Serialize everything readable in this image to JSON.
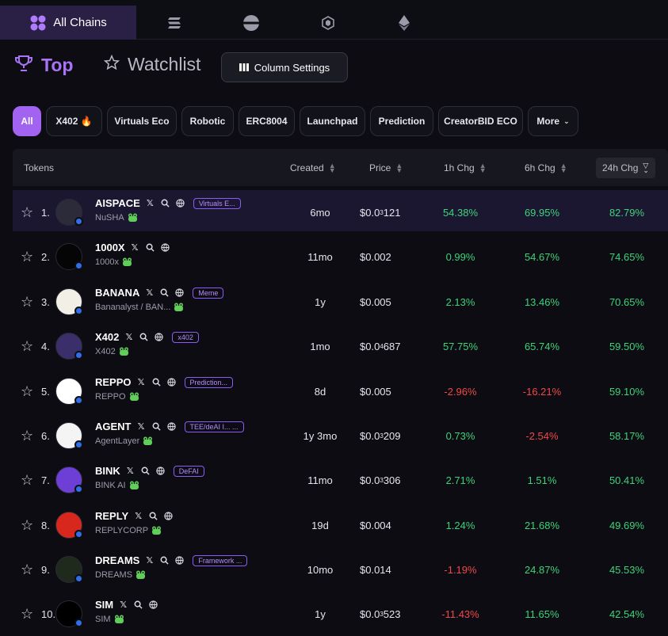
{
  "chains": {
    "active_label": "All Chains",
    "tabs": [
      {
        "name": "all-chains",
        "icon": "grid-icon"
      },
      {
        "name": "solana",
        "icon": "solana-icon"
      },
      {
        "name": "base",
        "icon": "base-icon"
      },
      {
        "name": "bnb",
        "icon": "bnb-icon"
      },
      {
        "name": "ethereum",
        "icon": "ethereum-icon"
      }
    ]
  },
  "header": {
    "top_label": "Top",
    "watchlist_label": "Watchlist",
    "column_settings_label": "Column Settings"
  },
  "filters": [
    "All",
    "X402 🔥",
    "Virtuals Eco",
    "Robotic",
    "ERC8004",
    "Launchpad",
    "Prediction",
    "CreatorBID ECO",
    "More"
  ],
  "table": {
    "columns": {
      "tokens": "Tokens",
      "created": "Created",
      "price": "Price",
      "chg1h": "1h Chg",
      "chg6h": "6h Chg",
      "chg24h": "24h Chg"
    },
    "rows": [
      {
        "rank": "1.",
        "symbol": "AISPACE",
        "name": "NuSHA",
        "tag": "Virtuals E...",
        "created": "6mo",
        "price_main": "$0.0",
        "price_sub": "3",
        "price_rest": "121",
        "chg1h": "54.38%",
        "chg6h": "69.95%",
        "chg24h": "82.79%",
        "c1": "pos",
        "c6": "pos",
        "c24": "pos",
        "avatar": "#2b2b3a"
      },
      {
        "rank": "2.",
        "symbol": "1000X",
        "name": "1000x",
        "tag": "",
        "created": "11mo",
        "price_main": "$0.002",
        "price_sub": "",
        "price_rest": "",
        "chg1h": "0.99%",
        "chg6h": "54.67%",
        "chg24h": "74.65%",
        "c1": "pos",
        "c6": "pos",
        "c24": "pos",
        "avatar": "#050505"
      },
      {
        "rank": "3.",
        "symbol": "BANANA",
        "name": "Bananalyst / BAN...",
        "tag": "Meme",
        "created": "1y",
        "price_main": "$0.005",
        "price_sub": "",
        "price_rest": "",
        "chg1h": "2.13%",
        "chg6h": "13.46%",
        "chg24h": "70.65%",
        "c1": "pos",
        "c6": "pos",
        "c24": "pos",
        "avatar": "#f1efe6"
      },
      {
        "rank": "4.",
        "symbol": "X402",
        "name": "X402",
        "tag": "x402",
        "created": "1mo",
        "price_main": "$0.0",
        "price_sub": "4",
        "price_rest": "687",
        "chg1h": "57.75%",
        "chg6h": "65.74%",
        "chg24h": "59.50%",
        "c1": "pos",
        "c6": "pos",
        "c24": "pos",
        "avatar": "#3a2f6b"
      },
      {
        "rank": "5.",
        "symbol": "REPPO",
        "name": "REPPO",
        "tag": "Prediction...",
        "created": "8d",
        "price_main": "$0.005",
        "price_sub": "",
        "price_rest": "",
        "chg1h": "-2.96%",
        "chg6h": "-16.21%",
        "chg24h": "59.10%",
        "c1": "neg",
        "c6": "neg",
        "c24": "pos",
        "avatar": "#ffffff"
      },
      {
        "rank": "6.",
        "symbol": "AGENT",
        "name": "AgentLayer",
        "tag": "TEE/deAI I... ...",
        "created": "1y 3mo",
        "price_main": "$0.0",
        "price_sub": "3",
        "price_rest": "209",
        "chg1h": "0.73%",
        "chg6h": "-2.54%",
        "chg24h": "58.17%",
        "c1": "pos",
        "c6": "neg",
        "c24": "pos",
        "avatar": "#f4f4f4"
      },
      {
        "rank": "7.",
        "symbol": "BINK",
        "name": "BINK AI",
        "tag": "DeFAI",
        "created": "11mo",
        "price_main": "$0.0",
        "price_sub": "3",
        "price_rest": "306",
        "chg1h": "2.71%",
        "chg6h": "1.51%",
        "chg24h": "50.41%",
        "c1": "pos",
        "c6": "pos",
        "c24": "pos",
        "avatar": "#6d3fd6"
      },
      {
        "rank": "8.",
        "symbol": "REPLY",
        "name": "REPLYCORP",
        "tag": "",
        "created": "19d",
        "price_main": "$0.004",
        "price_sub": "",
        "price_rest": "",
        "chg1h": "1.24%",
        "chg6h": "21.68%",
        "chg24h": "49.69%",
        "c1": "pos",
        "c6": "pos",
        "c24": "pos",
        "avatar": "#d8281e"
      },
      {
        "rank": "9.",
        "symbol": "DREAMS",
        "name": "DREAMS",
        "tag": "Framework ...",
        "created": "10mo",
        "price_main": "$0.014",
        "price_sub": "",
        "price_rest": "",
        "chg1h": "-1.19%",
        "chg6h": "24.87%",
        "chg24h": "45.53%",
        "c1": "neg",
        "c6": "pos",
        "c24": "pos",
        "avatar": "#1f2a1d"
      },
      {
        "rank": "10.",
        "symbol": "SIM",
        "name": "SIM",
        "tag": "",
        "created": "1y",
        "price_main": "$0.0",
        "price_sub": "3",
        "price_rest": "523",
        "chg1h": "-11.43%",
        "chg6h": "11.65%",
        "chg24h": "42.54%",
        "c1": "neg",
        "c6": "pos",
        "c24": "pos",
        "avatar": "#000000"
      }
    ]
  }
}
